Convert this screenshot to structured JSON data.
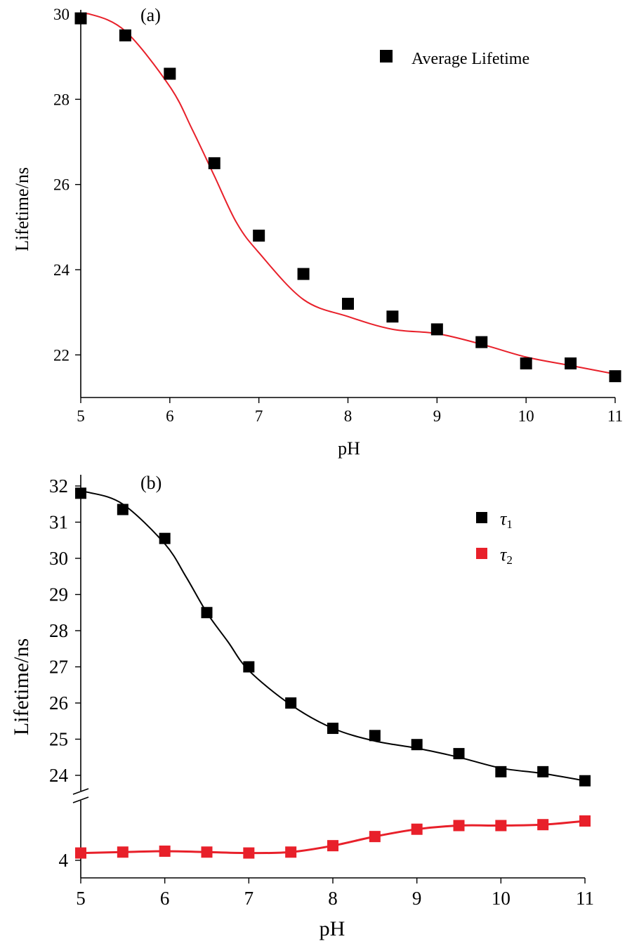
{
  "chart_data": [
    {
      "type": "scatter",
      "panel_label": "(a)",
      "xlabel": "pH",
      "ylabel": "Lifetime/ns",
      "xlim": [
        5,
        11
      ],
      "ylim": [
        21,
        30.1
      ],
      "xticks": [
        "5",
        "6",
        "7",
        "8",
        "9",
        "10",
        "11"
      ],
      "yticks": [
        "22",
        "24",
        "26",
        "28",
        "30"
      ],
      "legend_position": "top-right",
      "series": [
        {
          "name": "Average Lifetime",
          "color": "#000000",
          "marker": "square",
          "x": [
            5,
            5.5,
            6,
            6.5,
            7,
            7.5,
            8,
            8.5,
            9,
            9.5,
            10,
            10.5,
            11
          ],
          "y": [
            29.9,
            29.5,
            28.6,
            26.5,
            24.8,
            23.9,
            23.2,
            22.9,
            22.6,
            22.3,
            21.8,
            21.8,
            21.5
          ]
        }
      ],
      "fit_curves": [
        {
          "color": "#e8202a",
          "x": [
            5,
            5.1,
            5.5,
            6,
            6.25,
            6.5,
            6.75,
            7,
            7.5,
            8,
            8.5,
            9,
            9.5,
            10,
            10.5,
            11
          ],
          "y": [
            29.9,
            30.0,
            29.6,
            28.3,
            27.3,
            26.2,
            25.1,
            24.4,
            23.3,
            22.9,
            22.6,
            22.5,
            22.25,
            21.95,
            21.75,
            21.55
          ]
        }
      ]
    },
    {
      "type": "line",
      "panel_label": "(b)",
      "xlabel": "pH",
      "ylabel": "Lifetime/ns",
      "xlim": [
        5,
        11
      ],
      "ylim_upper": [
        23.6,
        32.1
      ],
      "ylim_lower": [
        3.8,
        4.6
      ],
      "axis_break": true,
      "xticks": [
        "5",
        "6",
        "7",
        "8",
        "9",
        "10",
        "11"
      ],
      "yticks_upper": [
        "24",
        "25",
        "26",
        "27",
        "28",
        "29",
        "30",
        "31",
        "32"
      ],
      "yticks_lower": [
        "4"
      ],
      "legend_position": "top-right",
      "series": [
        {
          "name": "τ",
          "subscript": "1",
          "color": "#000000",
          "marker": "square",
          "x": [
            5,
            5.5,
            6,
            6.5,
            7,
            7.5,
            8,
            8.5,
            9,
            9.5,
            10,
            10.5,
            11
          ],
          "y": [
            31.8,
            31.35,
            30.55,
            28.5,
            27.0,
            26.0,
            25.3,
            25.1,
            24.85,
            24.6,
            24.1,
            24.1,
            23.85
          ]
        },
        {
          "name": "τ",
          "subscript": "2",
          "color": "#e8202a",
          "marker": "square",
          "x": [
            5,
            5.5,
            6,
            6.5,
            7,
            7.5,
            8,
            8.5,
            9,
            9.5,
            10,
            10.5,
            11
          ],
          "y": [
            4.08,
            4.09,
            4.1,
            4.09,
            4.08,
            4.09,
            4.16,
            4.26,
            4.34,
            4.38,
            4.38,
            4.39,
            4.43
          ]
        }
      ],
      "fit_curves": [
        {
          "color": "#000000",
          "x": [
            5,
            5.1,
            5.5,
            6,
            6.25,
            6.5,
            6.75,
            7,
            7.5,
            8,
            8.5,
            9,
            9.5,
            10,
            10.5,
            11
          ],
          "y": [
            31.8,
            31.82,
            31.5,
            30.4,
            29.5,
            28.5,
            27.7,
            26.9,
            25.95,
            25.3,
            24.95,
            24.75,
            24.5,
            24.2,
            24.05,
            23.85
          ]
        },
        {
          "color": "#e8202a",
          "x": [
            5,
            5.5,
            6,
            6.5,
            7,
            7.5,
            8,
            8.5,
            9,
            9.5,
            10,
            10.5,
            11
          ],
          "y": [
            4.08,
            4.09,
            4.1,
            4.09,
            4.08,
            4.09,
            4.16,
            4.26,
            4.34,
            4.38,
            4.38,
            4.39,
            4.43
          ]
        }
      ]
    }
  ]
}
